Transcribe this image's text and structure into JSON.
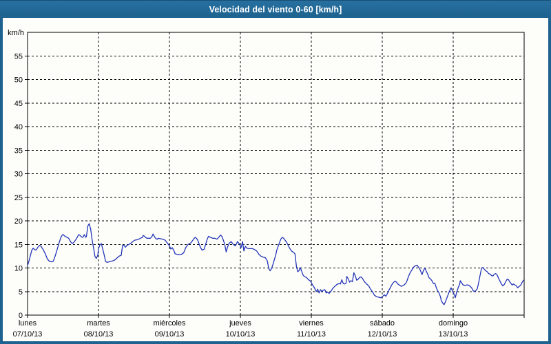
{
  "title": "Velocidad del viento 0-60 [km/h]",
  "colors": {
    "frame": "#1e628f",
    "titlebar_top": "#27709f",
    "titlebar_bottom": "#1e628f",
    "title_text": "#ffffff",
    "chart_background": "#fdfefa",
    "line": "#2233b8",
    "grid": "#000000",
    "axis_text": "#000000"
  },
  "chart_data": {
    "type": "line",
    "title": "Velocidad del viento 0-60 [km/h]",
    "ylabel": "km/h",
    "xlabel": "",
    "ylim": [
      0,
      60
    ],
    "ytick_step": 5,
    "ytick_labels": [
      "0",
      "5",
      "10",
      "15",
      "20",
      "25",
      "30",
      "35",
      "40",
      "45",
      "50",
      "55"
    ],
    "grid": true,
    "legend_position": "none",
    "x_days": [
      {
        "name": "lunes",
        "date": "07/10/13"
      },
      {
        "name": "martes",
        "date": "08/10/13"
      },
      {
        "name": "miércoles",
        "date": "09/10/13"
      },
      {
        "name": "jueves",
        "date": "10/10/13"
      },
      {
        "name": "viernes",
        "date": "11/10/13"
      },
      {
        "name": "sábado",
        "date": "12/10/13"
      },
      {
        "name": "domingo",
        "date": "13/10/13"
      }
    ],
    "xlim_days": [
      0,
      7
    ],
    "series": [
      {
        "name": "velocidad del viento",
        "color": "#2233b8",
        "points": [
          [
            0.0,
            10.5
          ],
          [
            0.02,
            11.5
          ],
          [
            0.04,
            12.6
          ],
          [
            0.06,
            13.8
          ],
          [
            0.08,
            14.2
          ],
          [
            0.1,
            13.9
          ],
          [
            0.12,
            13.8
          ],
          [
            0.15,
            14.5
          ],
          [
            0.17,
            14.8
          ],
          [
            0.19,
            14.6
          ],
          [
            0.22,
            13.9
          ],
          [
            0.25,
            13.0
          ],
          [
            0.28,
            11.9
          ],
          [
            0.31,
            11.4
          ],
          [
            0.34,
            11.3
          ],
          [
            0.36,
            11.4
          ],
          [
            0.38,
            12.1
          ],
          [
            0.41,
            13.5
          ],
          [
            0.44,
            15.1
          ],
          [
            0.47,
            16.5
          ],
          [
            0.49,
            17.0
          ],
          [
            0.5,
            17.1
          ],
          [
            0.53,
            16.7
          ],
          [
            0.56,
            16.5
          ],
          [
            0.58,
            16.3
          ],
          [
            0.61,
            15.5
          ],
          [
            0.63,
            15.2
          ],
          [
            0.65,
            15.4
          ],
          [
            0.68,
            16.0
          ],
          [
            0.7,
            16.5
          ],
          [
            0.72,
            17.1
          ],
          [
            0.74,
            16.9
          ],
          [
            0.76,
            16.6
          ],
          [
            0.78,
            16.5
          ],
          [
            0.8,
            17.1
          ],
          [
            0.82,
            16.5
          ],
          [
            0.83,
            16.7
          ],
          [
            0.85,
            18.9
          ],
          [
            0.87,
            19.4
          ],
          [
            0.89,
            18.2
          ],
          [
            0.91,
            16.0
          ],
          [
            0.93,
            14.3
          ],
          [
            0.95,
            12.5
          ],
          [
            0.97,
            12.0
          ],
          [
            0.99,
            12.7
          ],
          [
            1.0,
            14.1
          ],
          [
            1.02,
            14.9
          ],
          [
            1.04,
            15.2
          ],
          [
            1.06,
            14.0
          ],
          [
            1.08,
            12.8
          ],
          [
            1.1,
            11.4
          ],
          [
            1.12,
            11.2
          ],
          [
            1.15,
            11.3
          ],
          [
            1.17,
            11.4
          ],
          [
            1.2,
            11.5
          ],
          [
            1.23,
            11.7
          ],
          [
            1.26,
            12.1
          ],
          [
            1.29,
            12.5
          ],
          [
            1.32,
            12.7
          ],
          [
            1.34,
            14.8
          ],
          [
            1.36,
            14.8
          ],
          [
            1.38,
            14.4
          ],
          [
            1.4,
            14.8
          ],
          [
            1.43,
            15.0
          ],
          [
            1.46,
            15.3
          ],
          [
            1.49,
            15.7
          ],
          [
            1.51,
            15.9
          ],
          [
            1.55,
            16.0
          ],
          [
            1.59,
            16.3
          ],
          [
            1.62,
            16.5
          ],
          [
            1.63,
            16.9
          ],
          [
            1.65,
            16.7
          ],
          [
            1.68,
            16.3
          ],
          [
            1.71,
            16.3
          ],
          [
            1.73,
            16.3
          ],
          [
            1.75,
            16.6
          ],
          [
            1.77,
            17.2
          ],
          [
            1.79,
            16.6
          ],
          [
            1.81,
            16.2
          ],
          [
            1.83,
            16.1
          ],
          [
            1.84,
            16.3
          ],
          [
            1.87,
            16.2
          ],
          [
            1.91,
            16.1
          ],
          [
            1.94,
            15.9
          ],
          [
            1.97,
            15.3
          ],
          [
            2.0,
            14.7
          ],
          [
            2.02,
            14.0
          ],
          [
            2.04,
            14.3
          ],
          [
            2.06,
            13.8
          ],
          [
            2.08,
            13.0
          ],
          [
            2.11,
            12.9
          ],
          [
            2.14,
            12.8
          ],
          [
            2.17,
            12.9
          ],
          [
            2.2,
            13.2
          ],
          [
            2.23,
            14.3
          ],
          [
            2.26,
            15.0
          ],
          [
            2.3,
            15.3
          ],
          [
            2.33,
            15.9
          ],
          [
            2.36,
            16.5
          ],
          [
            2.38,
            16.3
          ],
          [
            2.4,
            15.9
          ],
          [
            2.42,
            15.0
          ],
          [
            2.44,
            14.3
          ],
          [
            2.46,
            13.8
          ],
          [
            2.49,
            14.0
          ],
          [
            2.51,
            15.0
          ],
          [
            2.53,
            16.0
          ],
          [
            2.55,
            16.7
          ],
          [
            2.58,
            16.5
          ],
          [
            2.61,
            16.3
          ],
          [
            2.64,
            16.3
          ],
          [
            2.67,
            16.1
          ],
          [
            2.7,
            16.6
          ],
          [
            2.72,
            17.0
          ],
          [
            2.74,
            16.7
          ],
          [
            2.76,
            15.9
          ],
          [
            2.78,
            15.0
          ],
          [
            2.8,
            13.4
          ],
          [
            2.82,
            14.5
          ],
          [
            2.84,
            15.2
          ],
          [
            2.87,
            15.6
          ],
          [
            2.9,
            15.0
          ],
          [
            2.93,
            14.7
          ],
          [
            2.96,
            15.6
          ],
          [
            2.99,
            15.0
          ],
          [
            3.01,
            14.3
          ],
          [
            3.03,
            15.6
          ],
          [
            3.05,
            13.6
          ],
          [
            3.07,
            14.6
          ],
          [
            3.09,
            14.2
          ],
          [
            3.12,
            14.1
          ],
          [
            3.15,
            14.1
          ],
          [
            3.17,
            14.1
          ],
          [
            3.2,
            13.9
          ],
          [
            3.23,
            13.6
          ],
          [
            3.26,
            12.9
          ],
          [
            3.29,
            12.5
          ],
          [
            3.32,
            12.3
          ],
          [
            3.35,
            12.2
          ],
          [
            3.38,
            11.5
          ],
          [
            3.4,
            9.9
          ],
          [
            3.42,
            9.4
          ],
          [
            3.44,
            9.9
          ],
          [
            3.46,
            10.8
          ],
          [
            3.48,
            11.8
          ],
          [
            3.5,
            12.8
          ],
          [
            3.51,
            13.6
          ],
          [
            3.53,
            14.5
          ],
          [
            3.55,
            15.3
          ],
          [
            3.57,
            16.1
          ],
          [
            3.59,
            16.5
          ],
          [
            3.61,
            16.3
          ],
          [
            3.63,
            15.9
          ],
          [
            3.65,
            15.5
          ],
          [
            3.67,
            14.9
          ],
          [
            3.69,
            14.3
          ],
          [
            3.72,
            13.6
          ],
          [
            3.75,
            13.3
          ],
          [
            3.77,
            13.0
          ],
          [
            3.79,
            10.3
          ],
          [
            3.81,
            9.2
          ],
          [
            3.83,
            9.5
          ],
          [
            3.84,
            10.1
          ],
          [
            3.86,
            9.5
          ],
          [
            3.88,
            8.6
          ],
          [
            3.9,
            8.2
          ],
          [
            3.93,
            8.0
          ],
          [
            3.96,
            7.5
          ],
          [
            3.99,
            7.2
          ],
          [
            4.01,
            6.6
          ],
          [
            4.04,
            5.9
          ],
          [
            4.07,
            5.0
          ],
          [
            4.09,
            5.5
          ],
          [
            4.11,
            4.7
          ],
          [
            4.13,
            5.4
          ],
          [
            4.15,
            5.0
          ],
          [
            4.17,
            5.3
          ],
          [
            4.19,
            5.4
          ],
          [
            4.21,
            4.7
          ],
          [
            4.23,
            4.9
          ],
          [
            4.25,
            4.6
          ],
          [
            4.27,
            4.9
          ],
          [
            4.3,
            5.6
          ],
          [
            4.33,
            6.1
          ],
          [
            4.36,
            6.5
          ],
          [
            4.39,
            6.7
          ],
          [
            4.41,
            6.6
          ],
          [
            4.43,
            7.5
          ],
          [
            4.45,
            6.7
          ],
          [
            4.47,
            6.6
          ],
          [
            4.49,
            6.8
          ],
          [
            4.5,
            8.2
          ],
          [
            4.52,
            7.7
          ],
          [
            4.54,
            7.0
          ],
          [
            4.56,
            7.3
          ],
          [
            4.58,
            7.1
          ],
          [
            4.6,
            9.0
          ],
          [
            4.62,
            8.3
          ],
          [
            4.64,
            7.4
          ],
          [
            4.66,
            7.6
          ],
          [
            4.68,
            8.0
          ],
          [
            4.7,
            8.1
          ],
          [
            4.72,
            7.8
          ],
          [
            4.74,
            7.3
          ],
          [
            4.76,
            6.9
          ],
          [
            4.78,
            6.6
          ],
          [
            4.81,
            6.2
          ],
          [
            4.83,
            5.6
          ],
          [
            4.86,
            5.0
          ],
          [
            4.89,
            4.2
          ],
          [
            4.92,
            3.9
          ],
          [
            4.95,
            3.8
          ],
          [
            4.98,
            3.7
          ],
          [
            5.0,
            3.9
          ],
          [
            5.03,
            4.3
          ],
          [
            5.05,
            4.0
          ],
          [
            5.07,
            4.5
          ],
          [
            5.09,
            5.2
          ],
          [
            5.11,
            5.7
          ],
          [
            5.13,
            6.3
          ],
          [
            5.15,
            6.8
          ],
          [
            5.17,
            7.1
          ],
          [
            5.18,
            7.2
          ],
          [
            5.2,
            7.0
          ],
          [
            5.22,
            6.6
          ],
          [
            5.24,
            6.4
          ],
          [
            5.27,
            6.1
          ],
          [
            5.3,
            6.3
          ],
          [
            5.33,
            6.7
          ],
          [
            5.35,
            7.3
          ],
          [
            5.37,
            8.2
          ],
          [
            5.39,
            8.9
          ],
          [
            5.41,
            9.4
          ],
          [
            5.43,
            9.9
          ],
          [
            5.45,
            10.3
          ],
          [
            5.47,
            10.5
          ],
          [
            5.49,
            10.6
          ],
          [
            5.5,
            10.4
          ],
          [
            5.52,
            10.0
          ],
          [
            5.54,
            9.4
          ],
          [
            5.56,
            8.6
          ],
          [
            5.58,
            9.4
          ],
          [
            5.6,
            10.0
          ],
          [
            5.62,
            9.3
          ],
          [
            5.64,
            8.7
          ],
          [
            5.66,
            7.9
          ],
          [
            5.68,
            7.7
          ],
          [
            5.7,
            7.3
          ],
          [
            5.72,
            6.7
          ],
          [
            5.74,
            6.8
          ],
          [
            5.76,
            5.9
          ],
          [
            5.78,
            5.2
          ],
          [
            5.8,
            4.7
          ],
          [
            5.82,
            3.9
          ],
          [
            5.83,
            3.2
          ],
          [
            5.85,
            2.6
          ],
          [
            5.87,
            2.2
          ],
          [
            5.89,
            2.8
          ],
          [
            5.91,
            3.6
          ],
          [
            5.93,
            4.4
          ],
          [
            5.95,
            5.2
          ],
          [
            5.97,
            5.8
          ],
          [
            5.99,
            5.1
          ],
          [
            6.01,
            4.5
          ],
          [
            6.03,
            3.7
          ],
          [
            6.05,
            4.9
          ],
          [
            6.07,
            5.8
          ],
          [
            6.09,
            6.5
          ],
          [
            6.1,
            7.3
          ],
          [
            6.12,
            6.8
          ],
          [
            6.14,
            6.4
          ],
          [
            6.17,
            6.3
          ],
          [
            6.19,
            6.4
          ],
          [
            6.21,
            6.4
          ],
          [
            6.24,
            6.1
          ],
          [
            6.26,
            5.8
          ],
          [
            6.28,
            5.2
          ],
          [
            6.3,
            5.0
          ],
          [
            6.32,
            5.2
          ],
          [
            6.34,
            5.6
          ],
          [
            6.36,
            7.0
          ],
          [
            6.38,
            8.5
          ],
          [
            6.4,
            10.0
          ],
          [
            6.42,
            10.1
          ],
          [
            6.44,
            9.7
          ],
          [
            6.46,
            9.4
          ],
          [
            6.48,
            9.2
          ],
          [
            6.5,
            8.8
          ],
          [
            6.52,
            8.7
          ],
          [
            6.54,
            8.4
          ],
          [
            6.56,
            8.3
          ],
          [
            6.58,
            8.7
          ],
          [
            6.6,
            8.8
          ],
          [
            6.62,
            8.5
          ],
          [
            6.64,
            7.8
          ],
          [
            6.66,
            7.2
          ],
          [
            6.68,
            6.6
          ],
          [
            6.7,
            6.2
          ],
          [
            6.72,
            6.5
          ],
          [
            6.74,
            7.1
          ],
          [
            6.76,
            7.6
          ],
          [
            6.78,
            7.5
          ],
          [
            6.8,
            7.0
          ],
          [
            6.82,
            6.6
          ],
          [
            6.83,
            6.4
          ],
          [
            6.85,
            6.6
          ],
          [
            6.87,
            6.4
          ],
          [
            6.89,
            6.2
          ],
          [
            6.91,
            5.8
          ],
          [
            6.93,
            6.1
          ],
          [
            6.95,
            6.3
          ],
          [
            6.97,
            6.9
          ],
          [
            6.99,
            7.4
          ]
        ]
      }
    ]
  }
}
